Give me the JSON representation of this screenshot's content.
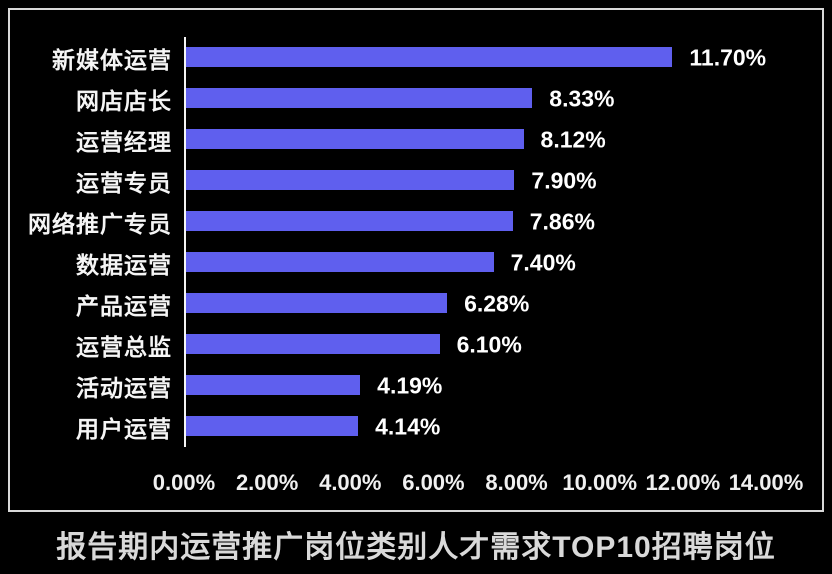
{
  "window": {
    "background_color": "#000000",
    "frame_border_color": "#d9d9d9",
    "text_color": "#ffffff"
  },
  "chart_data": {
    "type": "bar",
    "orientation": "horizontal",
    "title": "报告期内运营推广岗位类别人才需求TOP10招聘岗位",
    "categories": [
      "新媒体运营",
      "网店店长",
      "运营经理",
      "运营专员",
      "网络推广专员",
      "数据运营",
      "产品运营",
      "运营总监",
      "活动运营",
      "用户运营"
    ],
    "values": [
      11.7,
      8.33,
      8.12,
      7.9,
      7.86,
      7.4,
      6.28,
      6.1,
      4.19,
      4.14
    ],
    "value_labels": [
      "11.70%",
      "8.33%",
      "8.12%",
      "7.90%",
      "7.86%",
      "7.40%",
      "6.28%",
      "6.10%",
      "4.19%",
      "4.14%"
    ],
    "x_axis": {
      "min": 0,
      "max": 14,
      "unit": "%",
      "ticks": [
        "0.00%",
        "2.00%",
        "4.00%",
        "6.00%",
        "8.00%",
        "10.00%",
        "12.00%",
        "14.00%"
      ]
    },
    "bar_color": "#5f5fee",
    "grid": false,
    "legend": false,
    "data_labels": "outside-end",
    "sort_order": "descending"
  }
}
